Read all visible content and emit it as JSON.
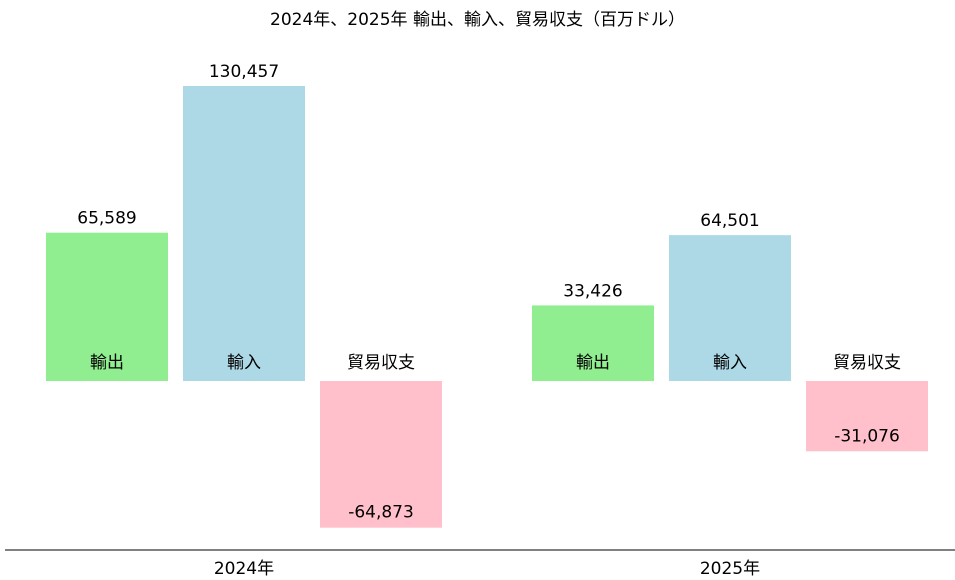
{
  "chart_data": {
    "type": "bar",
    "title": "2024年、2025年 輸出、輸入、貿易収支（百万ドル）",
    "xlabel": "",
    "ylabel": "",
    "categories": [
      "2024年",
      "2025年"
    ],
    "series": [
      {
        "name": "輸出",
        "values": [
          65589,
          33426
        ],
        "color": "#90ee90"
      },
      {
        "name": "輸入",
        "values": [
          130457,
          64501
        ],
        "color": "#add8e6"
      },
      {
        "name": "貿易収支",
        "values": [
          -64873,
          -31076
        ],
        "color": "#ffc0cb"
      }
    ],
    "data_labels": [
      [
        "65,589",
        "130,457",
        "-64,873"
      ],
      [
        "33,426",
        "64,501",
        "-31,076"
      ]
    ],
    "ylim": [
      -71000,
      135000
    ],
    "grid": false,
    "legend": "none"
  }
}
